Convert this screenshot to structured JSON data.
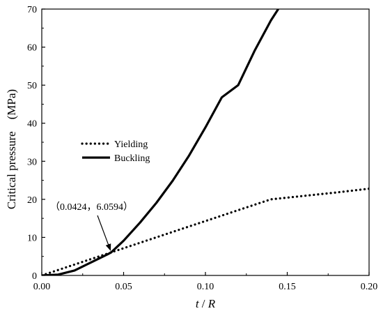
{
  "chart_data": {
    "type": "line",
    "title": "",
    "xlabel_italic_parts": [
      "t",
      " / ",
      "R"
    ],
    "ylabel": "Critical pressure　(MPa)",
    "xlim": [
      0,
      0.2
    ],
    "ylim": [
      0,
      70
    ],
    "x_ticks": [
      0.0,
      0.05,
      0.1,
      0.15,
      0.2
    ],
    "x_tick_labels": [
      "0.00",
      "0.05",
      "0.10",
      "0.15",
      "0.20"
    ],
    "y_ticks": [
      0,
      10,
      20,
      30,
      40,
      50,
      60,
      70
    ],
    "y_tick_labels": [
      "0",
      "10",
      "20",
      "30",
      "40",
      "50",
      "60",
      "70"
    ],
    "grid": false,
    "legend_position": "center-left",
    "series": [
      {
        "name": "Yielding",
        "style": "dotted",
        "color": "#000000",
        "x": [
          0,
          0.02,
          0.04,
          0.0424,
          0.06,
          0.08,
          0.1,
          0.12,
          0.14,
          0.16,
          0.18,
          0.2
        ],
        "y": [
          0,
          2.86,
          5.72,
          6.06,
          8.58,
          11.44,
          14.29,
          17.15,
          20.0,
          20.9,
          21.8,
          22.8
        ]
      },
      {
        "name": "Buckling",
        "style": "solid",
        "color": "#000000",
        "x": [
          0,
          0.01,
          0.02,
          0.03,
          0.04,
          0.0424,
          0.05,
          0.06,
          0.07,
          0.08,
          0.09,
          0.1,
          0.11,
          0.12,
          0.13,
          0.14,
          0.1445
        ],
        "y": [
          0,
          0.22,
          1.29,
          3.41,
          5.5,
          6.06,
          9.12,
          13.87,
          19.06,
          24.9,
          31.5,
          38.9,
          46.8,
          50.0,
          59.0,
          67.0,
          70.0
        ]
      }
    ],
    "annotations": [
      {
        "text": "（0.0424，6.0594）",
        "points_to": {
          "x": 0.0424,
          "y": 6.0594
        }
      }
    ]
  }
}
